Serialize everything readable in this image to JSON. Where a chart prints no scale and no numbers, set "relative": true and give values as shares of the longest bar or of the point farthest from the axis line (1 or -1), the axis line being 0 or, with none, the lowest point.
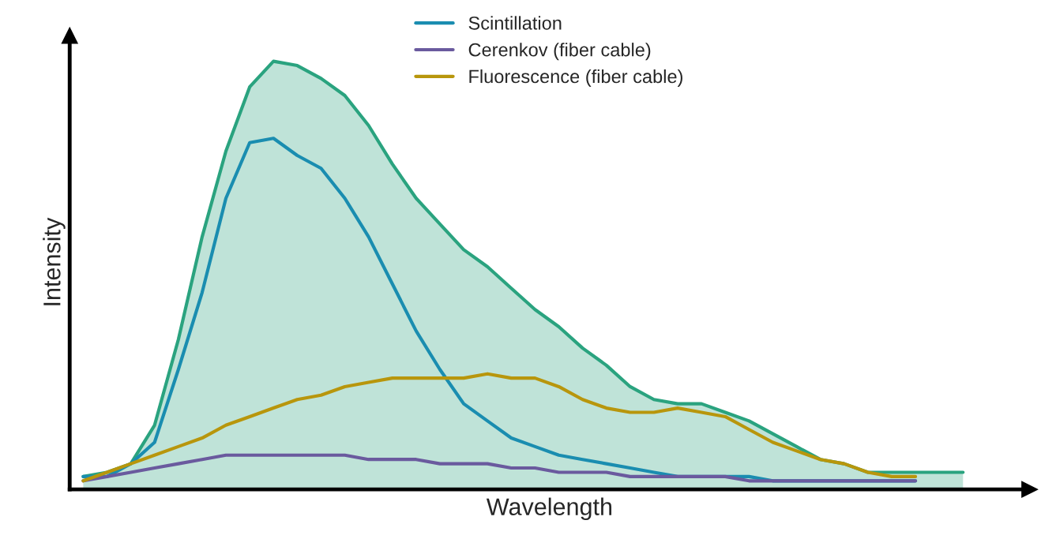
{
  "chart_data": {
    "type": "line",
    "relative": true,
    "xlabel": "Wavelength",
    "ylabel": "Intensity",
    "legend": "top",
    "grid": false,
    "categories": [
      null,
      null,
      null,
      null,
      null,
      null,
      null,
      null,
      null,
      null,
      null,
      null,
      null,
      null,
      null,
      null,
      null,
      null,
      null,
      null,
      null,
      null,
      null,
      null,
      null,
      null,
      null,
      null,
      null,
      null,
      null,
      null,
      null,
      null,
      null,
      null,
      null,
      null
    ],
    "series": [
      {
        "type": "area",
        "color": "#2aa37f",
        "values": [
          0.03,
          0.04,
          0.06,
          0.15,
          0.35,
          0.59,
          0.79,
          0.94,
          1.0,
          0.99,
          0.96,
          0.92,
          0.85,
          0.76,
          0.68,
          0.62,
          0.56,
          0.52,
          0.47,
          0.42,
          0.38,
          0.33,
          0.29,
          0.24,
          0.21,
          0.2,
          0.2,
          0.18,
          0.16,
          0.13,
          0.1,
          0.07,
          0.06,
          0.04,
          0.04,
          0.04,
          0.04,
          0.04
        ]
      },
      {
        "name": "Scintillation",
        "color": "#1a8db0",
        "values": [
          0.03,
          0.03,
          0.06,
          0.11,
          0.28,
          0.46,
          0.68,
          0.81,
          0.82,
          0.78,
          0.75,
          0.68,
          0.59,
          0.48,
          0.37,
          0.28,
          0.2,
          0.16,
          0.12,
          0.1,
          0.08,
          0.07,
          0.06,
          0.05,
          0.04,
          0.03,
          0.03,
          0.03,
          0.03,
          0.02,
          0.02,
          0.02,
          0.02,
          0.02,
          0.02,
          0.02,
          null,
          null
        ]
      },
      {
        "name": "Cerenkov (fiber cable)",
        "color": "#6a5a9e",
        "values": [
          0.02,
          0.03,
          0.04,
          0.05,
          0.06,
          0.07,
          0.08,
          0.08,
          0.08,
          0.08,
          0.08,
          0.08,
          0.07,
          0.07,
          0.07,
          0.06,
          0.06,
          0.06,
          0.05,
          0.05,
          0.04,
          0.04,
          0.04,
          0.03,
          0.03,
          0.03,
          0.03,
          0.03,
          0.02,
          0.02,
          0.02,
          0.02,
          0.02,
          0.02,
          0.02,
          0.02,
          null,
          null
        ]
      },
      {
        "name": "Fluorescence (fiber cable)",
        "color": "#b8960c",
        "values": [
          0.02,
          0.04,
          0.06,
          0.08,
          0.1,
          0.12,
          0.15,
          0.17,
          0.19,
          0.21,
          0.22,
          0.24,
          0.25,
          0.26,
          0.26,
          0.26,
          0.26,
          0.27,
          0.26,
          0.26,
          0.24,
          0.21,
          0.19,
          0.18,
          0.18,
          0.19,
          0.18,
          0.17,
          0.14,
          0.11,
          0.09,
          0.07,
          0.06,
          0.04,
          0.03,
          0.03,
          null,
          null
        ]
      }
    ]
  }
}
